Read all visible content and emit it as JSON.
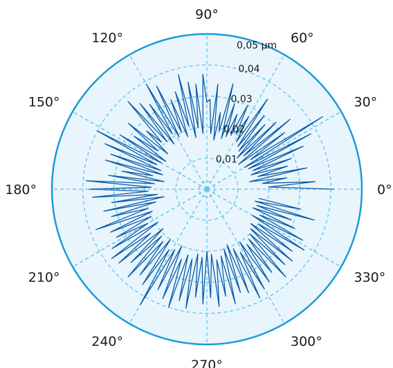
{
  "chart_data": {
    "type": "polar-line",
    "angle_labels": [
      "0°",
      "30°",
      "60°",
      "90°",
      "120°",
      "150°",
      "180°",
      "210°",
      "240°",
      "270°",
      "300°",
      "330°"
    ],
    "angle_values": [
      0,
      30,
      60,
      90,
      120,
      150,
      180,
      210,
      240,
      270,
      300,
      330
    ],
    "radial_ticks": [
      {
        "value": 0.01,
        "label": "0,01"
      },
      {
        "value": 0.02,
        "label": "0,02"
      },
      {
        "value": 0.03,
        "label": "0,03"
      },
      {
        "value": 0.04,
        "label": "0,04"
      },
      {
        "value": 0.05,
        "label": "0,05 µm"
      }
    ],
    "rlim": [
      0,
      0.05
    ],
    "grid": true,
    "colors": {
      "line": "#0a5aa8",
      "outer_ring": "#1b9ad6",
      "grid": "#5ec4ea",
      "fill": "#e8f5fc"
    },
    "series": [
      {
        "theta": [
          0,
          2,
          4,
          6,
          8,
          10,
          12,
          14,
          16,
          18,
          20,
          22,
          24,
          26,
          28,
          30,
          32,
          34,
          36,
          38,
          40,
          42,
          44,
          46,
          48,
          50,
          52,
          54,
          56,
          58,
          60,
          62,
          64,
          66,
          68,
          70,
          72,
          74,
          76,
          78,
          80,
          82,
          84,
          86,
          88,
          90,
          92,
          94,
          96,
          98,
          100,
          102,
          104,
          106,
          108,
          110,
          112,
          114,
          116,
          118,
          120,
          122,
          124,
          126,
          128,
          130,
          132,
          134,
          136,
          138,
          140,
          142,
          144,
          146,
          148,
          150,
          152,
          154,
          156,
          158,
          160,
          162,
          164,
          166,
          168,
          170,
          172,
          174,
          176,
          178,
          180,
          182,
          184,
          186,
          188,
          190,
          192,
          194,
          196,
          198,
          200,
          202,
          204,
          206,
          208,
          210,
          212,
          214,
          216,
          218,
          220,
          222,
          224,
          226,
          228,
          230,
          232,
          234,
          236,
          238,
          240,
          242,
          244,
          246,
          248,
          250,
          252,
          254,
          256,
          258,
          260,
          262,
          264,
          266,
          268,
          270,
          272,
          274,
          276,
          278,
          280,
          282,
          284,
          286,
          288,
          290,
          292,
          294,
          296,
          298,
          300,
          302,
          304,
          306,
          308,
          310,
          312,
          314,
          316,
          318,
          320,
          322,
          324,
          326,
          328,
          330,
          332,
          334,
          336,
          338,
          340,
          342,
          344,
          346,
          348,
          350,
          352,
          354,
          356,
          358
        ],
        "r": [
          0.041,
          0.02,
          0.035,
          0.018,
          0.026,
          0.014,
          0.033,
          0.017,
          0.027,
          0.015,
          0.029,
          0.016,
          0.034,
          0.015,
          0.038,
          0.014,
          0.044,
          0.017,
          0.031,
          0.013,
          0.035,
          0.016,
          0.031,
          0.014,
          0.028,
          0.016,
          0.03,
          0.017,
          0.035,
          0.018,
          0.027,
          0.02,
          0.03,
          0.019,
          0.026,
          0.018,
          0.029,
          0.017,
          0.035,
          0.019,
          0.025,
          0.016,
          0.034,
          0.018,
          0.029,
          0.028,
          0.037,
          0.018,
          0.034,
          0.02,
          0.035,
          0.017,
          0.038,
          0.021,
          0.033,
          0.018,
          0.031,
          0.02,
          0.037,
          0.019,
          0.039,
          0.021,
          0.033,
          0.018,
          0.035,
          0.02,
          0.038,
          0.021,
          0.027,
          0.017,
          0.033,
          0.02,
          0.029,
          0.016,
          0.033,
          0.017,
          0.04,
          0.018,
          0.036,
          0.016,
          0.033,
          0.015,
          0.034,
          0.018,
          0.028,
          0.014,
          0.032,
          0.017,
          0.039,
          0.018,
          0.038,
          0.019,
          0.037,
          0.016,
          0.031,
          0.014,
          0.034,
          0.017,
          0.032,
          0.02,
          0.038,
          0.019,
          0.034,
          0.02,
          0.033,
          0.022,
          0.036,
          0.019,
          0.038,
          0.023,
          0.037,
          0.019,
          0.034,
          0.021,
          0.038,
          0.022,
          0.035,
          0.02,
          0.037,
          0.023,
          0.043,
          0.022,
          0.036,
          0.02,
          0.038,
          0.024,
          0.04,
          0.022,
          0.037,
          0.023,
          0.039,
          0.021,
          0.035,
          0.022,
          0.037,
          0.02,
          0.035,
          0.021,
          0.038,
          0.023,
          0.035,
          0.022,
          0.038,
          0.02,
          0.035,
          0.019,
          0.036,
          0.021,
          0.039,
          0.023,
          0.037,
          0.02,
          0.036,
          0.022,
          0.034,
          0.021,
          0.038,
          0.02,
          0.035,
          0.019,
          0.036,
          0.018,
          0.034,
          0.02,
          0.037,
          0.017,
          0.035,
          0.019,
          0.031,
          0.016,
          0.029,
          0.017,
          0.036,
          0.016,
          0.031,
          0.017
        ]
      }
    ]
  }
}
